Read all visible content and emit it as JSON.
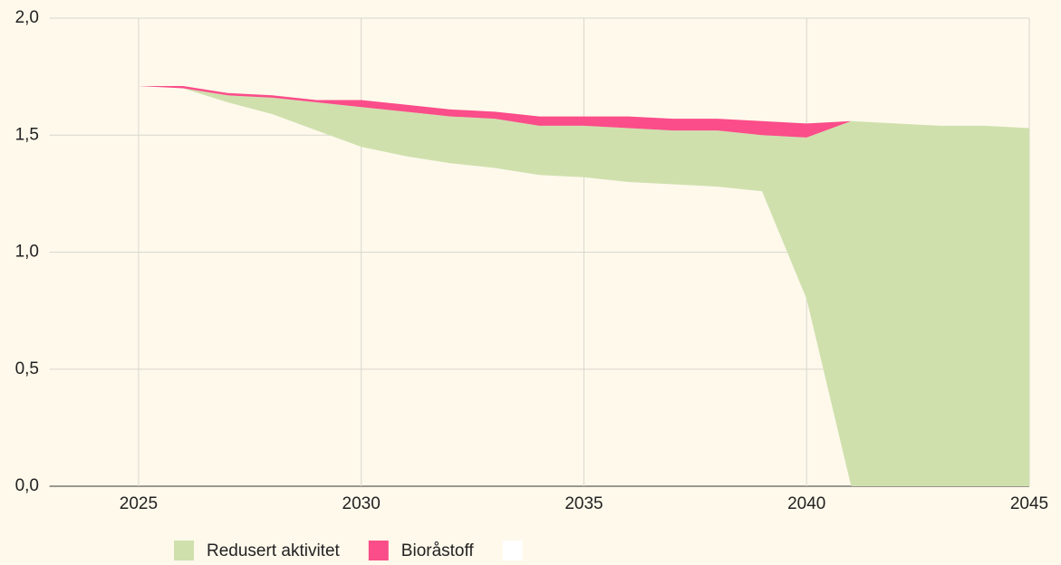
{
  "chart_data": {
    "type": "stacked_area",
    "x": [
      2023,
      2024,
      2025,
      2026,
      2027,
      2028,
      2029,
      2030,
      2031,
      2032,
      2033,
      2034,
      2035,
      2036,
      2037,
      2038,
      2039,
      2040,
      2041,
      2042,
      2043,
      2044,
      2045
    ],
    "series": [
      {
        "color": "#ffffff",
        "values": [
          1.72,
          1.71,
          1.71,
          1.7,
          1.64,
          1.59,
          1.52,
          1.45,
          1.41,
          1.38,
          1.36,
          1.33,
          1.32,
          1.3,
          1.29,
          1.28,
          1.26,
          0.8,
          0,
          0,
          0,
          0,
          0
        ]
      },
      {
        "name": "Redusert aktivitet",
        "color": "#cfe0ad",
        "values": [
          0,
          0,
          0,
          0,
          0.03,
          0.07,
          0.12,
          0.17,
          0.19,
          0.2,
          0.21,
          0.21,
          0.22,
          0.23,
          0.23,
          0.24,
          0.24,
          0.69,
          1.56,
          1.55,
          1.54,
          1.54,
          1.53
        ]
      },
      {
        "name": "Bioråstoff",
        "color": "#fa4d89",
        "values": [
          0,
          0,
          0,
          0.01,
          0.01,
          0.01,
          0.01,
          0.03,
          0.03,
          0.03,
          0.03,
          0.04,
          0.04,
          0.05,
          0.05,
          0.05,
          0.06,
          0.06,
          0,
          0,
          0,
          0,
          0
        ]
      }
    ],
    "xlim": [
      2023,
      2045
    ],
    "xticks": [
      2025,
      2030,
      2035,
      2040,
      2045
    ],
    "ylim": [
      0,
      2
    ],
    "yticks": [
      {
        "value": 0,
        "label": "0,0"
      },
      {
        "value": 0.5,
        "label": "0,5"
      },
      {
        "value": 1,
        "label": "1,0"
      },
      {
        "value": 1.5,
        "label": "1,5"
      },
      {
        "value": 2,
        "label": "2,0"
      }
    ],
    "grid": true,
    "legend": "bottom"
  }
}
